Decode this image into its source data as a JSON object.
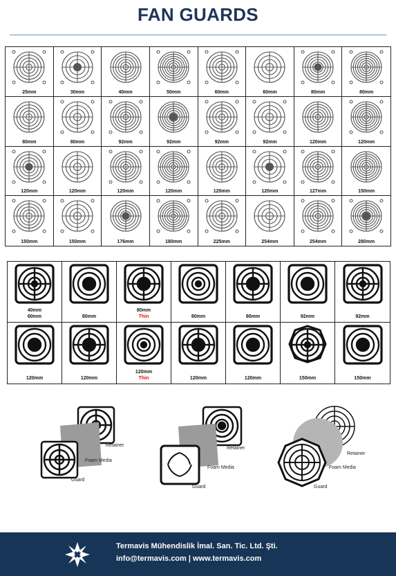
{
  "title": "FAN GUARDS",
  "wire_guards": [
    [
      "25mm",
      "30mm",
      "40mm",
      "50mm",
      "60mm",
      "60mm",
      "80mm",
      "80mm"
    ],
    [
      "80mm",
      "80mm",
      "92mm",
      "92mm",
      "92mm",
      "92mm",
      "120mm",
      "120mm"
    ],
    [
      "120mm",
      "120mm",
      "120mm",
      "120mm",
      "120mm",
      "120mm",
      "127mm",
      "150mm"
    ],
    [
      "150mm",
      "150mm",
      "176mm",
      "180mm",
      "225mm",
      "254mm",
      "254mm",
      "280mm"
    ]
  ],
  "plastic_guards": [
    [
      {
        "size": "40mm",
        "size2": "60mm",
        "note": ""
      },
      {
        "size": "80mm",
        "size2": "",
        "note": ""
      },
      {
        "size": "80mm",
        "size2": "",
        "note": "Thin"
      },
      {
        "size": "80mm",
        "size2": "",
        "note": ""
      },
      {
        "size": "80mm",
        "size2": "",
        "note": ""
      },
      {
        "size": "92mm",
        "size2": "",
        "note": ""
      },
      {
        "size": "92mm",
        "size2": "",
        "note": ""
      }
    ],
    [
      {
        "size": "120mm",
        "size2": "",
        "note": ""
      },
      {
        "size": "120mm",
        "size2": "",
        "note": ""
      },
      {
        "size": "120mm",
        "size2": "",
        "note": "Thin"
      },
      {
        "size": "120mm",
        "size2": "",
        "note": ""
      },
      {
        "size": "120mm",
        "size2": "",
        "note": ""
      },
      {
        "size": "150mm",
        "size2": "",
        "note": ""
      },
      {
        "size": "150mm",
        "size2": "",
        "note": ""
      }
    ]
  ],
  "assembly_labels": {
    "retainer": "Retainer",
    "foam_media": "Foam Media",
    "guard": "Guard"
  },
  "footer": {
    "company": "Termavis Mühendislik İmal. San. Tic. Ltd. Şti.",
    "contact": "info@termavis.com | www.termavis.com"
  },
  "colors": {
    "title": "#1f3557",
    "footer_bg": "#173556",
    "thin_note": "#dd1111"
  }
}
